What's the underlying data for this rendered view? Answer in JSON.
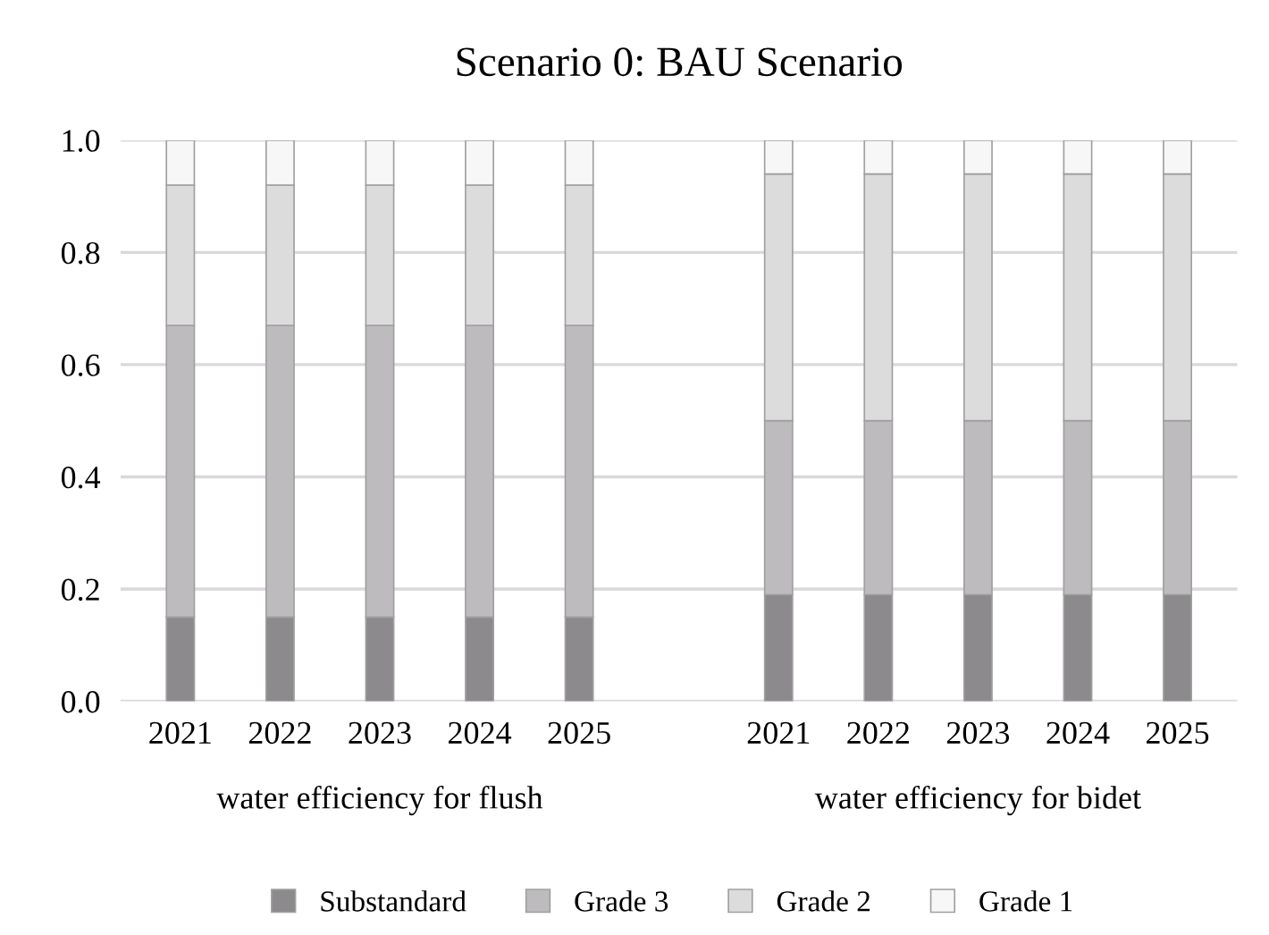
{
  "chart_data": {
    "type": "bar",
    "title": "Scenario 0: BAU Scenario",
    "stacked": true,
    "categories": [
      "2021",
      "2022",
      "2023",
      "2024",
      "2025",
      null,
      "2021",
      "2022",
      "2023",
      "2024",
      "2025"
    ],
    "series": [
      {
        "name": "Substandard",
        "color": "#8c8a8c",
        "values": [
          0.15,
          0.15,
          0.15,
          0.15,
          0.15,
          null,
          0.19,
          0.19,
          0.19,
          0.19,
          0.19
        ]
      },
      {
        "name": "Grade 3",
        "color": "#bdbbbd",
        "values": [
          0.52,
          0.52,
          0.52,
          0.52,
          0.52,
          null,
          0.31,
          0.31,
          0.31,
          0.31,
          0.31
        ]
      },
      {
        "name": "Grade 2",
        "color": "#dcdcdc",
        "values": [
          0.25,
          0.25,
          0.25,
          0.25,
          0.25,
          null,
          0.44,
          0.44,
          0.44,
          0.44,
          0.44
        ]
      },
      {
        "name": "Grade 1",
        "color": "#f7f7f7",
        "values": [
          0.08,
          0.08,
          0.08,
          0.08,
          0.08,
          null,
          0.06,
          0.06,
          0.06,
          0.06,
          0.06
        ]
      }
    ],
    "annotations": [
      "water efficiency for flush",
      "water efficiency for bidet"
    ],
    "ylim": [
      0,
      1.0
    ],
    "yticks": [
      {
        "value": 0,
        "label": "0.0"
      },
      {
        "value": 0.2,
        "label": "0.2"
      },
      {
        "value": 0.4,
        "label": "0.4"
      },
      {
        "value": 0.6,
        "label": "0.6"
      },
      {
        "value": 0.8,
        "label": "0.8"
      },
      {
        "value": 1,
        "label": "1.0"
      }
    ],
    "grid": "y",
    "legend": "bottom"
  }
}
